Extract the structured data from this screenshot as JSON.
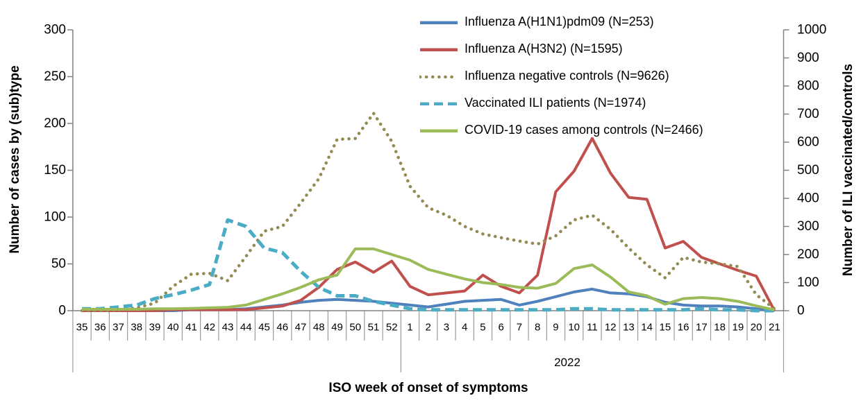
{
  "axes": {
    "left": {
      "title": "Number of cases by (sub)type",
      "max": 300,
      "ticks": [
        300,
        250,
        200,
        150,
        100,
        50,
        0
      ]
    },
    "right": {
      "title": "Number of ILI vaccinated/controls",
      "max": 1000,
      "ticks": [
        1000,
        900,
        800,
        700,
        600,
        500,
        400,
        300,
        200,
        100,
        0
      ]
    },
    "x": {
      "title": "ISO week of onset of symptoms",
      "year_label": "2022"
    }
  },
  "chart_data": {
    "type": "line",
    "title": "",
    "xlabel": "ISO week of onset of symptoms",
    "ylabel_left": "Number of cases by (sub)type",
    "ylabel_right": "Number of ILI vaccinated/controls",
    "ylim_left": [
      0,
      300
    ],
    "ylim_right": [
      0,
      1000
    ],
    "grid": false,
    "legend_position": "top-right-inside",
    "x": [
      35,
      36,
      37,
      38,
      39,
      40,
      41,
      42,
      43,
      44,
      45,
      46,
      47,
      48,
      49,
      50,
      51,
      52,
      1,
      2,
      3,
      4,
      5,
      6,
      7,
      8,
      9,
      10,
      11,
      12,
      13,
      14,
      15,
      16,
      17,
      18,
      19,
      20,
      21
    ],
    "year_groups": [
      {
        "weeks": "35-52",
        "label": ""
      },
      {
        "weeks": "1-21",
        "label": "2022"
      }
    ],
    "series": [
      {
        "name": "Influenza A(H1N1)pdm09 (N=253)",
        "axis": "left",
        "color": "#4F81BD",
        "style": "solid",
        "values": [
          0,
          0,
          0,
          0,
          0,
          0,
          1,
          1,
          1,
          2,
          4,
          6,
          9,
          11,
          12,
          11,
          10,
          8,
          6,
          4,
          7,
          10,
          11,
          12,
          6,
          10,
          15,
          20,
          23,
          19,
          18,
          15,
          9,
          6,
          5,
          5,
          4,
          2,
          0
        ]
      },
      {
        "name": "Influenza A(H3N2) (N=1595)",
        "axis": "left",
        "color": "#C0504D",
        "style": "solid",
        "values": [
          0,
          0,
          0,
          0,
          0,
          1,
          1,
          1,
          1,
          1,
          3,
          5,
          11,
          25,
          44,
          52,
          41,
          53,
          26,
          17,
          19,
          21,
          38,
          26,
          19,
          38,
          127,
          149,
          184,
          147,
          121,
          119,
          67,
          74,
          57,
          50,
          43,
          37,
          0
        ]
      },
      {
        "name": "Influenza negative controls (N=9626)",
        "axis": "right",
        "color": "#948A54",
        "style": "dotted",
        "values": [
          0,
          0,
          3,
          10,
          27,
          87,
          130,
          133,
          107,
          193,
          283,
          300,
          383,
          470,
          610,
          613,
          703,
          603,
          443,
          367,
          340,
          300,
          273,
          260,
          248,
          237,
          267,
          323,
          340,
          290,
          223,
          163,
          117,
          190,
          173,
          167,
          157,
          57,
          7
        ]
      },
      {
        "name": "Vaccinated ILI patients (N=1974)",
        "axis": "right",
        "color": "#4BACC6",
        "style": "dashed",
        "values": [
          7,
          7,
          13,
          20,
          43,
          57,
          73,
          93,
          323,
          300,
          223,
          207,
          140,
          83,
          53,
          53,
          33,
          20,
          7,
          3,
          3,
          3,
          3,
          3,
          3,
          3,
          3,
          7,
          7,
          3,
          3,
          3,
          3,
          3,
          7,
          3,
          3,
          0,
          0
        ]
      },
      {
        "name": "COVID-19 cases among controls (N=2466)",
        "axis": "right",
        "color": "#9BBB59",
        "style": "solid",
        "values": [
          5,
          5,
          5,
          5,
          7,
          7,
          8,
          10,
          12,
          20,
          40,
          60,
          83,
          110,
          127,
          220,
          220,
          200,
          180,
          147,
          130,
          113,
          100,
          93,
          83,
          80,
          97,
          150,
          163,
          120,
          67,
          53,
          23,
          43,
          47,
          43,
          33,
          17,
          3
        ]
      }
    ]
  }
}
